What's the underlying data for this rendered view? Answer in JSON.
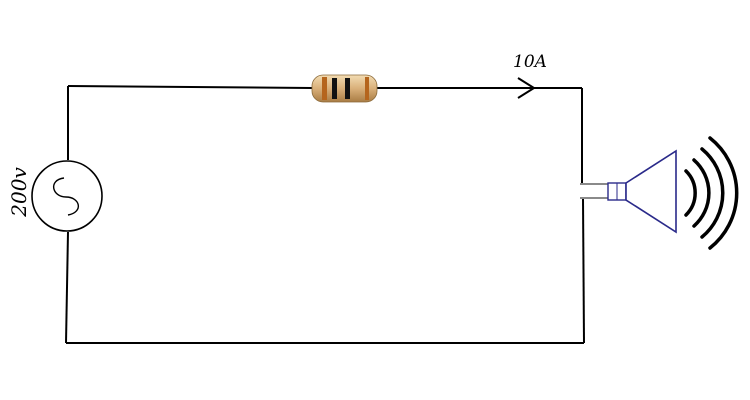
{
  "labels": {
    "current": "10A",
    "voltage": "200v"
  },
  "components": {
    "source": "ac-voltage-source-icon",
    "resistor": "resistor-icon",
    "speaker": "speaker-icon",
    "current_arrow": "current-direction-arrow-icon",
    "sound_waves": "sound-waves-icon"
  },
  "colors": {
    "wire": "#000000",
    "speaker": "#2a2a8a",
    "resistor_body": "#d9b07a",
    "resistor_band_1": "#b5651d",
    "resistor_band_2": "#111111",
    "resistor_band_3": "#111111",
    "resistor_band_4": "#b5651d"
  }
}
